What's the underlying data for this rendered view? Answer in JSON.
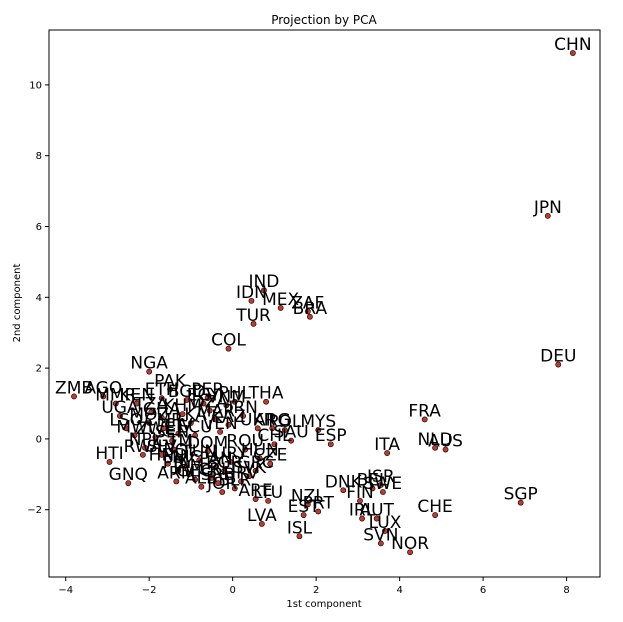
{
  "chart_data": {
    "type": "scatter",
    "title": "Projection by PCA",
    "xlabel": "1st component",
    "ylabel": "2nd component",
    "xlim": [
      -4.4,
      8.8
    ],
    "ylim": [
      -3.9,
      11.55
    ],
    "xticks": [
      -4,
      -2,
      0,
      2,
      4,
      6,
      8
    ],
    "yticks": [
      -2,
      0,
      2,
      4,
      6,
      8,
      10
    ],
    "grid": false,
    "marker_color": "#c0392b",
    "points": [
      {
        "label": "CHN",
        "x": 8.15,
        "y": 10.9
      },
      {
        "label": "JPN",
        "x": 7.55,
        "y": 6.3
      },
      {
        "label": "DEU",
        "x": 7.8,
        "y": 2.1
      },
      {
        "label": "IND",
        "x": 0.75,
        "y": 4.2
      },
      {
        "label": "IDN",
        "x": 0.45,
        "y": 3.9
      },
      {
        "label": "MEX",
        "x": 1.15,
        "y": 3.7
      },
      {
        "label": "ZAF",
        "x": 1.8,
        "y": 3.6
      },
      {
        "label": "BRA",
        "x": 1.85,
        "y": 3.45
      },
      {
        "label": "TUR",
        "x": 0.5,
        "y": 3.25
      },
      {
        "label": "COL",
        "x": -0.1,
        "y": 2.55
      },
      {
        "label": "NGA",
        "x": -2.0,
        "y": 1.9
      },
      {
        "label": "PAK",
        "x": -1.5,
        "y": 1.4
      },
      {
        "label": "ZMB",
        "x": -3.8,
        "y": 1.2
      },
      {
        "label": "AGO",
        "x": -3.1,
        "y": 1.2
      },
      {
        "label": "PHL",
        "x": 0.05,
        "y": 1.05
      },
      {
        "label": "THA",
        "x": 0.8,
        "y": 1.05
      },
      {
        "label": "MYS",
        "x": 2.05,
        "y": 0.25
      },
      {
        "label": "SAU",
        "x": 1.4,
        "y": -0.05
      },
      {
        "label": "ESP",
        "x": 2.35,
        "y": -0.15
      },
      {
        "label": "FRA",
        "x": 4.6,
        "y": 0.55
      },
      {
        "label": "ITA",
        "x": 3.7,
        "y": -0.4
      },
      {
        "label": "NLD",
        "x": 4.85,
        "y": -0.25
      },
      {
        "label": "AUS",
        "x": 5.1,
        "y": -0.3
      },
      {
        "label": "HTI",
        "x": -2.95,
        "y": -0.65
      },
      {
        "label": "GNQ",
        "x": -2.5,
        "y": -1.25
      },
      {
        "label": "DNK",
        "x": 2.65,
        "y": -1.45
      },
      {
        "label": "ISR",
        "x": 3.55,
        "y": -1.3
      },
      {
        "label": "BEL",
        "x": 3.35,
        "y": -1.4
      },
      {
        "label": "SWE",
        "x": 3.6,
        "y": -1.5
      },
      {
        "label": "FIN",
        "x": 3.05,
        "y": -1.75
      },
      {
        "label": "NZL",
        "x": 1.8,
        "y": -1.85
      },
      {
        "label": "EST",
        "x": 1.7,
        "y": -2.15
      },
      {
        "label": "PRT",
        "x": 2.05,
        "y": -2.05
      },
      {
        "label": "IRL",
        "x": 3.1,
        "y": -2.25
      },
      {
        "label": "AUT",
        "x": 3.45,
        "y": -2.25
      },
      {
        "label": "CHE",
        "x": 4.85,
        "y": -2.15
      },
      {
        "label": "SGP",
        "x": 6.9,
        "y": -1.8
      },
      {
        "label": "LUX",
        "x": 3.65,
        "y": -2.6
      },
      {
        "label": "SVN",
        "x": 3.55,
        "y": -2.95
      },
      {
        "label": "NOR",
        "x": 4.25,
        "y": -3.2
      },
      {
        "label": "LVA",
        "x": 0.7,
        "y": -2.4
      },
      {
        "label": "ISL",
        "x": 1.6,
        "y": -2.75
      },
      {
        "label": "JOR",
        "x": -0.25,
        "y": -1.5
      },
      {
        "label": "ARE",
        "x": 0.55,
        "y": -1.7
      },
      {
        "label": "LTU",
        "x": 0.85,
        "y": -1.75
      },
      {
        "label": "UGA",
        "x": -2.7,
        "y": 0.65
      },
      {
        "label": "LSO",
        "x": -2.55,
        "y": 0.3
      },
      {
        "label": "NPL",
        "x": -2.1,
        "y": -0.25
      },
      {
        "label": "SLV",
        "x": -1.7,
        "y": -0.45
      },
      {
        "label": "MMR",
        "x": -2.8,
        "y": 1.0
      },
      {
        "label": "BGD",
        "x": -1.1,
        "y": 1.1
      },
      {
        "label": "KEN",
        "x": -2.3,
        "y": 1.0
      },
      {
        "label": "ETH",
        "x": -1.7,
        "y": 1.15
      },
      {
        "label": "PER",
        "x": -0.6,
        "y": 1.15
      },
      {
        "label": "EGY",
        "x": -0.7,
        "y": 1.0
      },
      {
        "label": "MAR",
        "x": -0.4,
        "y": 0.55
      },
      {
        "label": "UKR",
        "x": 0.6,
        "y": 0.3
      },
      {
        "label": "POL",
        "x": 1.25,
        "y": 0.25
      },
      {
        "label": "ARG",
        "x": 0.95,
        "y": 0.3
      },
      {
        "label": "CHL",
        "x": 1.0,
        "y": -0.15
      },
      {
        "label": "ROU",
        "x": 0.3,
        "y": -0.3
      },
      {
        "label": "HUN",
        "x": 0.65,
        "y": -0.55
      },
      {
        "label": "CZE",
        "x": 0.9,
        "y": -0.7
      },
      {
        "label": "GRC",
        "x": 0.55,
        "y": -0.9
      },
      {
        "label": "SVK",
        "x": 0.4,
        "y": -1.05
      },
      {
        "label": "HRV",
        "x": 0.2,
        "y": -1.2
      },
      {
        "label": "BGR",
        "x": -0.2,
        "y": -0.9
      },
      {
        "label": "TUN",
        "x": -0.8,
        "y": -0.6
      },
      {
        "label": "GTM",
        "x": -1.4,
        "y": -0.3
      },
      {
        "label": "BOL",
        "x": -1.25,
        "y": -0.55
      },
      {
        "label": "HND",
        "x": -1.55,
        "y": -0.7
      },
      {
        "label": "NIC",
        "x": -1.1,
        "y": -0.75
      },
      {
        "label": "CRI",
        "x": -0.5,
        "y": -1.1
      },
      {
        "label": "DOM",
        "x": -0.6,
        "y": -0.35
      },
      {
        "label": "ECU",
        "x": -0.9,
        "y": 0.1
      },
      {
        "label": "VEN",
        "x": -0.3,
        "y": 0.2
      },
      {
        "label": "KAZ",
        "x": -0.1,
        "y": 0.4
      },
      {
        "label": "IRN",
        "x": 0.25,
        "y": 0.65
      },
      {
        "label": "DZA",
        "x": -0.55,
        "y": 0.8
      },
      {
        "label": "GHA",
        "x": -1.7,
        "y": 0.6
      },
      {
        "label": "TZA",
        "x": -1.95,
        "y": 0.75
      },
      {
        "label": "CMR",
        "x": -1.65,
        "y": 0.3
      },
      {
        "label": "CIV",
        "x": -1.3,
        "y": 0.15
      },
      {
        "label": "SEN",
        "x": -1.45,
        "y": -0.05
      },
      {
        "label": "MOZ",
        "x": -2.0,
        "y": 0.45
      },
      {
        "label": "MWI",
        "x": -2.35,
        "y": 0.1
      },
      {
        "label": "RWA",
        "x": -2.15,
        "y": -0.45
      },
      {
        "label": "ZWE",
        "x": -1.85,
        "y": 0.05
      },
      {
        "label": "LKA",
        "x": -1.0,
        "y": 0.45
      },
      {
        "label": "VNM",
        "x": -0.15,
        "y": 0.95
      },
      {
        "label": "KHM",
        "x": -1.2,
        "y": 0.7
      },
      {
        "label": "JAM",
        "x": -1.05,
        "y": -1.0
      },
      {
        "label": "PRY",
        "x": -1.3,
        "y": -0.9
      },
      {
        "label": "URY",
        "x": -0.05,
        "y": -0.65
      },
      {
        "label": "PAN",
        "x": -0.4,
        "y": -0.8
      },
      {
        "label": "BLR",
        "x": 0.05,
        "y": -1.4
      },
      {
        "label": "SRB",
        "x": -0.35,
        "y": -1.25
      },
      {
        "label": "ALB",
        "x": -0.75,
        "y": -1.35
      },
      {
        "label": "ARM",
        "x": -1.35,
        "y": -1.2
      },
      {
        "label": "GEO",
        "x": -0.9,
        "y": -1.15
      }
    ]
  }
}
